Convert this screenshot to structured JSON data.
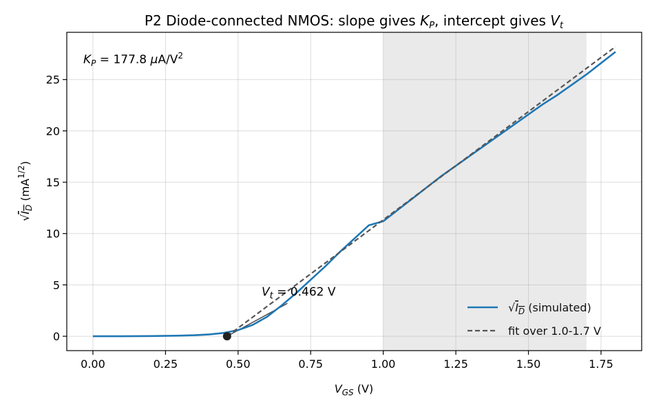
{
  "chart_data": {
    "type": "line",
    "title": {
      "prefix": "P2  Diode-connected NMOS: slope gives ",
      "kp": "K",
      "kp_sub": "P",
      "middle": ", intercept gives ",
      "vt": "V",
      "vt_sub": "t"
    },
    "xlabel": {
      "sym": "V",
      "sub": "GS",
      "unit": " (V)"
    },
    "ylabel": {
      "root": "√",
      "sym": "I",
      "sub": "D",
      "unit": "  (mA",
      "exp": "1/2",
      "close": ")"
    },
    "xlim": [
      -0.09,
      1.89
    ],
    "ylim": [
      -1.4,
      29.6
    ],
    "xticks": [
      0.0,
      0.25,
      0.5,
      0.75,
      1.0,
      1.25,
      1.5,
      1.75
    ],
    "xtick_labels": [
      "0.00",
      "0.25",
      "0.50",
      "0.75",
      "1.00",
      "1.25",
      "1.50",
      "1.75"
    ],
    "yticks": [
      0,
      5,
      10,
      15,
      20,
      25
    ],
    "ytick_labels": [
      "0",
      "5",
      "10",
      "15",
      "20",
      "25"
    ],
    "grid": true,
    "fit_region": [
      1.0,
      1.7
    ],
    "series": [
      {
        "name": "√I_D (simulated)",
        "style": "solid",
        "color": "#1f77b4",
        "x": [
          0.0,
          0.1,
          0.2,
          0.3,
          0.35,
          0.4,
          0.45,
          0.5,
          0.55,
          0.6,
          0.65,
          0.7,
          0.75,
          0.8,
          0.85,
          0.9,
          0.95,
          1.0,
          1.05,
          1.1,
          1.15,
          1.2,
          1.25,
          1.3,
          1.35,
          1.4,
          1.45,
          1.5,
          1.55,
          1.6,
          1.65,
          1.7,
          1.75,
          1.8
        ],
        "y": [
          0.0,
          0.0,
          0.02,
          0.06,
          0.1,
          0.18,
          0.32,
          0.6,
          1.1,
          1.9,
          3.0,
          4.2,
          5.5,
          6.8,
          8.2,
          9.5,
          10.8,
          11.2,
          12.3,
          13.4,
          14.5,
          15.6,
          16.6,
          17.6,
          18.6,
          19.6,
          20.6,
          21.6,
          22.6,
          23.5,
          24.5,
          25.5,
          26.6,
          27.7
        ]
      },
      {
        "name": "fit over 1.0-1.7 V",
        "style": "dashed",
        "color": "#555555",
        "x": [
          0.462,
          1.8
        ],
        "y": [
          0.0,
          28.2
        ]
      }
    ],
    "tangent_segment": {
      "x": [
        0.462,
        0.67
      ],
      "y": [
        0.0,
        3.2
      ],
      "color": "#444444"
    },
    "vt_point": {
      "x": 0.462,
      "y": 0.0,
      "color": "#222222"
    },
    "annotations": {
      "kp": {
        "sym": "K",
        "sub": "P",
        "text": " = 177.8 ",
        "mu": "μ",
        "unit": "A/V",
        "exp": "2"
      },
      "vt": {
        "sym": "V",
        "sub": "t",
        "text": " = 0.462 V"
      }
    },
    "legend": {
      "placement": "lower-right",
      "entries": [
        {
          "root": "√",
          "sym": "I",
          "sub": "D",
          "rest": "  (simulated)"
        },
        {
          "text": "fit over 1.0-1.7 V"
        }
      ]
    }
  }
}
